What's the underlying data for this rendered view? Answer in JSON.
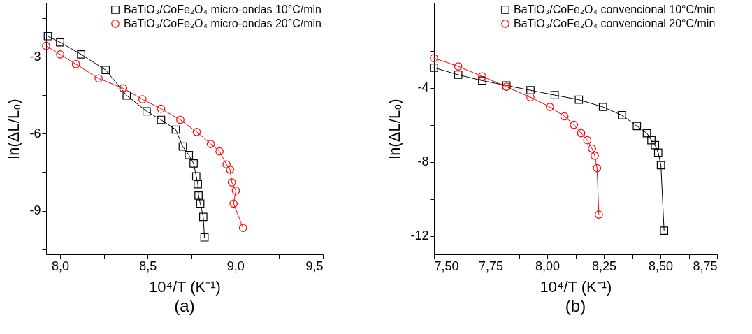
{
  "chart_data": [
    {
      "type": "line",
      "title": "(a)",
      "xlabel": "10⁴/T (K⁻¹)",
      "ylabel": "ln(ΔL/L₀)",
      "xlim": [
        7.92,
        9.5
      ],
      "ylim": [
        -10.7,
        -0.9
      ],
      "xticks": [
        {
          "value": 8,
          "label": "8,0"
        },
        {
          "value": 8.25,
          "label": null
        },
        {
          "value": 8.5,
          "label": "8,5"
        },
        {
          "value": 8.75,
          "label": null
        },
        {
          "value": 9,
          "label": "9,0"
        },
        {
          "value": 9.25,
          "label": null
        },
        {
          "value": 9.5,
          "label": "9,5"
        }
      ],
      "yticks": [
        {
          "value": -1.5,
          "label": null
        },
        -3,
        {
          "value": -4.5,
          "label": null
        },
        -6,
        {
          "value": -7.5,
          "label": null
        },
        -9,
        {
          "value": -10.5,
          "label": null
        }
      ],
      "legend": "top right",
      "line_style": "solid",
      "series": [
        {
          "name": "BaTiO₃/CoFe₂O₄ micro-ondas 10°C/min",
          "color": "#000000",
          "marker": "square",
          "x": [
            7.93,
            8.0,
            8.12,
            8.26,
            8.38,
            8.494,
            8.576,
            8.66,
            8.7,
            8.735,
            8.762,
            8.777,
            8.786,
            8.79,
            8.8,
            8.817,
            8.824
          ],
          "values": [
            -2.2,
            -2.44,
            -2.91,
            -3.52,
            -4.51,
            -5.13,
            -5.46,
            -5.84,
            -6.5,
            -6.83,
            -7.16,
            -7.66,
            -7.97,
            -8.41,
            -8.72,
            -9.24,
            -10.04
          ]
        },
        {
          "name": "BaTiO₃/CoFe₂O₄ micro-ondas 20°C/min",
          "color": "#ff0000",
          "marker": "circle",
          "x": [
            7.92,
            8.0,
            8.09,
            8.22,
            8.36,
            8.47,
            8.576,
            8.686,
            8.78,
            8.86,
            8.91,
            8.95,
            8.97,
            8.98,
            9.003,
            8.99,
            9.044
          ],
          "values": [
            -2.58,
            -2.91,
            -3.29,
            -3.85,
            -4.23,
            -4.66,
            -5.03,
            -5.46,
            -5.93,
            -6.4,
            -6.69,
            -7.2,
            -7.4,
            -7.9,
            -8.22,
            -8.72,
            -9.67
          ]
        }
      ]
    },
    {
      "type": "line",
      "title": "(b)",
      "xlabel": "10⁴/T (K⁻¹)",
      "ylabel": "ln(ΔL/L₀)",
      "xlim": [
        7.5,
        8.75
      ],
      "ylim": [
        -13,
        0.6
      ],
      "xticks": [
        {
          "value": 7.5,
          "label": "7,50"
        },
        {
          "value": 7.625,
          "label": null
        },
        {
          "value": 7.75,
          "label": "7,75"
        },
        {
          "value": 7.875,
          "label": null
        },
        {
          "value": 8,
          "label": "8,00"
        },
        {
          "value": 8.125,
          "label": null
        },
        {
          "value": 8.25,
          "label": "8,25"
        },
        {
          "value": 8.375,
          "label": null
        },
        {
          "value": 8.5,
          "label": "8,50"
        },
        {
          "value": 8.625,
          "label": null
        },
        {
          "value": 8.75,
          "label": "8,75"
        }
      ],
      "yticks": [
        {
          "value": -2,
          "label": null
        },
        -4,
        {
          "value": -6,
          "label": null
        },
        -8,
        {
          "value": -10,
          "label": null
        },
        -12
      ],
      "legend": "top right",
      "line_style": "solid",
      "series": [
        {
          "name": "BaTiO₃/CoFe₂O₄ convencional 10°C/min",
          "color": "#000000",
          "marker": "square",
          "x": [
            7.5,
            7.607,
            7.713,
            7.82,
            7.926,
            8.033,
            8.14,
            8.246,
            8.33,
            8.396,
            8.44,
            8.46,
            8.476,
            8.49,
            8.502,
            8.516
          ],
          "values": [
            -2.91,
            -3.29,
            -3.61,
            -3.87,
            -4.13,
            -4.39,
            -4.64,
            -5.03,
            -5.48,
            -6.06,
            -6.45,
            -6.83,
            -7.09,
            -7.5,
            -8.18,
            -11.72
          ]
        },
        {
          "name": "BaTiO₃/CoFe₂O₄ convencional 20°C/min",
          "color": "#ff0000",
          "marker": "circle",
          "x": [
            7.5,
            7.607,
            7.713,
            7.82,
            7.926,
            8.012,
            8.076,
            8.118,
            8.15,
            8.177,
            8.198,
            8.21,
            8.22,
            8.228
          ],
          "values": [
            -2.39,
            -2.84,
            -3.38,
            -3.94,
            -4.51,
            -5.03,
            -5.54,
            -6.0,
            -6.45,
            -6.83,
            -7.28,
            -7.67,
            -8.34,
            -10.85
          ]
        }
      ]
    }
  ]
}
